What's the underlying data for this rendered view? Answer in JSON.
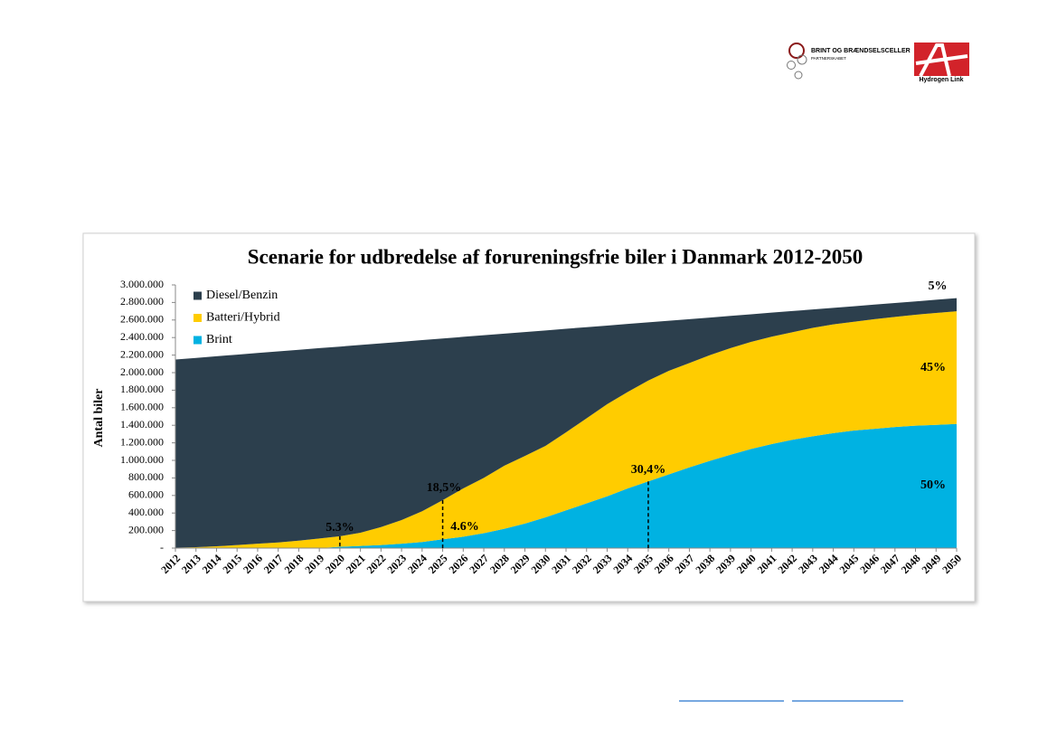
{
  "header": {
    "logo_title": "BRINT OG BRÆNDSELSCELLER",
    "logo_subtitle": "PARTNERSKABET",
    "logo2": "Hydrogen Link"
  },
  "chart_data": {
    "type": "stacked_area",
    "title": "Scenarie for udbredelse af forureningsfrie biler i Danmark 2012-2050",
    "y_label": "Antal biler",
    "categories": [
      "2012",
      "2013",
      "2014",
      "2015",
      "2016",
      "2017",
      "2018",
      "2019",
      "2020",
      "2021",
      "2022",
      "2023",
      "2024",
      "2025",
      "2026",
      "2027",
      "2028",
      "2029",
      "2030",
      "2031",
      "2032",
      "2033",
      "2034",
      "2035",
      "2036",
      "2037",
      "2038",
      "2039",
      "2040",
      "2041",
      "2042",
      "2043",
      "2044",
      "2045",
      "2046",
      "2047",
      "2048",
      "2049",
      "2050"
    ],
    "series": [
      {
        "name": "Diesel/Benzin",
        "color": "#2c3f4d",
        "values": [
          2145000,
          2158000,
          2167000,
          2170000,
          2174000,
          2177000,
          2175000,
          2169000,
          2162000,
          2141000,
          2094000,
          2032000,
          1951000,
          1843000,
          1728000,
          1626000,
          1504000,
          1413000,
          1316000,
          1180000,
          1038000,
          896000,
          775000,
          663000,
          572000,
          500000,
          428000,
          367000,
          315000,
          274000,
          242000,
          210000,
          189000,
          177000,
          166000,
          159000,
          152000,
          151000,
          149000
        ]
      },
      {
        "name": "Batteri/Hybrid",
        "color": "#ffcc00",
        "values": [
          5000,
          10000,
          20000,
          35000,
          50000,
          65000,
          85000,
          110000,
          120000,
          150000,
          205000,
          270000,
          350000,
          446000,
          550000,
          630000,
          720000,
          770000,
          815000,
          890000,
          970000,
          1050000,
          1100000,
          1150000,
          1180000,
          1190000,
          1205000,
          1215000,
          1220000,
          1225000,
          1225000,
          1235000,
          1240000,
          1240000,
          1250000,
          1255000,
          1265000,
          1275000,
          1285000
        ]
      },
      {
        "name": "Brint",
        "color": "#00b2e2",
        "values": [
          0,
          0,
          0,
          0,
          0,
          0,
          0,
          0,
          15000,
          25000,
          35000,
          50000,
          70000,
          100000,
          130000,
          170000,
          220000,
          280000,
          350000,
          430000,
          510000,
          590000,
          680000,
          760000,
          840000,
          920000,
          995000,
          1065000,
          1130000,
          1185000,
          1235000,
          1275000,
          1310000,
          1340000,
          1360000,
          1380000,
          1395000,
          1405000,
          1415000
        ]
      }
    ],
    "ylim": [
      0,
      3000000
    ],
    "yticks": [
      {
        "value": 0,
        "label": "-"
      },
      {
        "value": 200000,
        "label": "200.000"
      },
      {
        "value": 400000,
        "label": "400.000"
      },
      {
        "value": 600000,
        "label": "600.000"
      },
      {
        "value": 800000,
        "label": "800.000"
      },
      {
        "value": 1000000,
        "label": "1.000.000"
      },
      {
        "value": 1200000,
        "label": "1.200.000"
      },
      {
        "value": 1400000,
        "label": "1.400.000"
      },
      {
        "value": 1600000,
        "label": "1.600.000"
      },
      {
        "value": 1800000,
        "label": "1.800.000"
      },
      {
        "value": 2000000,
        "label": "2.000.000"
      },
      {
        "value": 2200000,
        "label": "2.200.000"
      },
      {
        "value": 2400000,
        "label": "2.400.000"
      },
      {
        "value": 2600000,
        "label": "2.600.000"
      },
      {
        "value": 2800000,
        "label": "2.800.000"
      },
      {
        "value": 3000000,
        "label": "3.000.000"
      }
    ],
    "legend": "top-left",
    "annotations": [
      "5.3%",
      "18,5%",
      "4.6%",
      "30,4%",
      "5%",
      "45%",
      "50%"
    ]
  }
}
